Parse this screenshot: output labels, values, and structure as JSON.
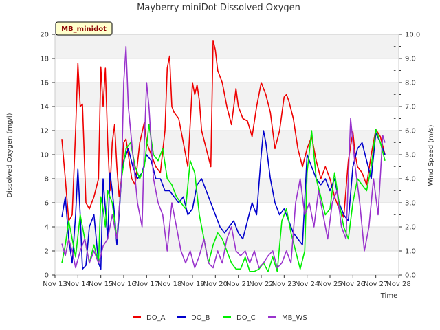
{
  "chart_data": {
    "type": "line",
    "title": "Mayberry miniDot Dissolved Oxygen",
    "xlabel": "Time",
    "ylabel": "Dissolved Oxygen (mg/l)",
    "y2label": "Wind Speed (m/s)",
    "badge": "MB_minidot",
    "x_ticks": [
      "Nov 13",
      "Nov 14",
      "Nov 15",
      "Nov 16",
      "Nov 17",
      "Nov 18",
      "Nov 19",
      "Nov 20",
      "Nov 21",
      "Nov 22",
      "Nov 23",
      "Nov 24",
      "Nov 25",
      "Nov 26",
      "Nov 27",
      "Nov 28"
    ],
    "y_ticks": [
      "0",
      "2",
      "4",
      "6",
      "8",
      "10",
      "12",
      "14",
      "16",
      "18",
      "20"
    ],
    "y2_ticks": [
      "0.0",
      "1.0",
      "2.0",
      "3.0",
      "4.0",
      "5.0",
      "6.0",
      "7.0",
      "8.0",
      "9.0",
      "10.0"
    ],
    "xlim": [
      13,
      28
    ],
    "ylim": [
      0,
      20
    ],
    "y2lim": [
      0,
      10
    ],
    "grid": true,
    "legend_position": "bottom",
    "series": [
      {
        "name": "DO_A",
        "color": "#ee0000",
        "axis": "left",
        "x": [
          13.3,
          13.45,
          13.6,
          13.75,
          13.9,
          14.0,
          14.1,
          14.2,
          14.35,
          14.5,
          14.7,
          14.9,
          15.0,
          15.1,
          15.2,
          15.3,
          15.4,
          15.5,
          15.6,
          15.7,
          15.8,
          15.9,
          16.0,
          16.1,
          16.2,
          16.35,
          16.5,
          16.7,
          16.9,
          17.0,
          17.2,
          17.4,
          17.6,
          17.8,
          17.9,
          18.0,
          18.1,
          18.2,
          18.4,
          18.6,
          18.8,
          19.0,
          19.1,
          19.2,
          19.3,
          19.4,
          19.6,
          19.8,
          19.9,
          20.0,
          20.1,
          20.3,
          20.5,
          20.7,
          20.9,
          21.0,
          21.2,
          21.4,
          21.6,
          21.8,
          22.0,
          22.2,
          22.4,
          22.6,
          22.8,
          23.0,
          23.1,
          23.2,
          23.4,
          23.6,
          23.8,
          24.0,
          24.2,
          24.4,
          24.6,
          24.8,
          25.0,
          25.2,
          25.4,
          25.6,
          25.8,
          26.0,
          26.1,
          26.2,
          26.4,
          26.6,
          26.8,
          27.0,
          27.2,
          27.4
        ],
        "values": [
          11.3,
          8.0,
          4.5,
          5.0,
          12.0,
          17.6,
          14.0,
          14.2,
          6.0,
          5.5,
          6.5,
          8.0,
          17.3,
          14.0,
          17.2,
          11.0,
          7.0,
          11.0,
          12.5,
          9.0,
          6.5,
          8.0,
          11.0,
          11.3,
          10.0,
          8.0,
          7.5,
          11.0,
          12.7,
          11.0,
          10.0,
          9.0,
          8.5,
          12.0,
          17.2,
          18.2,
          14.0,
          13.5,
          13.0,
          11.0,
          9.0,
          16.0,
          15.0,
          15.8,
          14.5,
          12.0,
          10.5,
          9.0,
          19.5,
          18.7,
          17.0,
          16.0,
          14.0,
          12.5,
          15.5,
          14.0,
          13.0,
          12.8,
          11.5,
          14.0,
          16.0,
          15.0,
          13.5,
          10.5,
          12.0,
          14.8,
          15.0,
          14.5,
          13.0,
          10.5,
          9.0,
          10.5,
          11.5,
          9.5,
          8.0,
          9.0,
          8.0,
          6.5,
          5.5,
          4.8,
          9.5,
          11.9,
          10.0,
          9.0,
          8.5,
          7.5,
          10.0,
          12.1,
          11.5,
          10.0
        ]
      },
      {
        "name": "DO_B",
        "color": "#0000cc",
        "axis": "left",
        "x": [
          13.3,
          13.45,
          13.6,
          13.75,
          13.9,
          14.0,
          14.1,
          14.2,
          14.35,
          14.5,
          14.7,
          14.9,
          15.0,
          15.1,
          15.2,
          15.3,
          15.4,
          15.5,
          15.6,
          15.7,
          15.8,
          15.9,
          16.0,
          16.2,
          16.4,
          16.6,
          16.8,
          17.0,
          17.2,
          17.4,
          17.6,
          17.8,
          18.0,
          18.2,
          18.4,
          18.6,
          18.8,
          19.0,
          19.2,
          19.4,
          19.6,
          19.8,
          20.0,
          20.2,
          20.4,
          20.6,
          20.8,
          21.0,
          21.2,
          21.4,
          21.6,
          21.8,
          22.0,
          22.1,
          22.2,
          22.4,
          22.6,
          22.8,
          23.0,
          23.2,
          23.4,
          23.6,
          23.8,
          24.0,
          24.2,
          24.4,
          24.6,
          24.8,
          25.0,
          25.2,
          25.4,
          25.6,
          25.8,
          26.0,
          26.2,
          26.4,
          26.6,
          26.8,
          27.0,
          27.2,
          27.4
        ],
        "values": [
          4.8,
          6.5,
          3.0,
          1.0,
          5.0,
          8.8,
          5.0,
          0.5,
          0.8,
          4.0,
          5.0,
          1.0,
          0.5,
          8.0,
          5.5,
          3.0,
          8.5,
          7.0,
          5.0,
          2.5,
          5.0,
          8.0,
          9.5,
          10.5,
          9.0,
          8.0,
          8.5,
          10.0,
          9.5,
          8.0,
          8.0,
          7.0,
          7.0,
          6.5,
          6.0,
          6.5,
          5.0,
          5.5,
          7.5,
          8.0,
          7.0,
          6.0,
          5.0,
          4.0,
          3.5,
          4.0,
          4.5,
          3.5,
          3.0,
          4.5,
          6.0,
          5.0,
          10.0,
          12.0,
          11.0,
          8.0,
          6.0,
          5.0,
          5.5,
          4.5,
          3.5,
          3.0,
          2.5,
          10.0,
          9.0,
          8.0,
          7.5,
          8.0,
          7.0,
          8.0,
          6.0,
          5.0,
          4.5,
          9.0,
          10.5,
          11.0,
          9.5,
          8.0,
          11.8,
          11.0,
          10.0
        ]
      },
      {
        "name": "DO_C",
        "color": "#00ee00",
        "axis": "left",
        "x": [
          13.3,
          13.45,
          13.6,
          13.75,
          13.9,
          14.1,
          14.3,
          14.5,
          14.7,
          14.9,
          15.0,
          15.1,
          15.2,
          15.3,
          15.5,
          15.7,
          15.9,
          16.1,
          16.3,
          16.5,
          16.7,
          16.9,
          17.1,
          17.3,
          17.5,
          17.7,
          17.9,
          18.1,
          18.3,
          18.5,
          18.7,
          18.9,
          19.1,
          19.3,
          19.5,
          19.7,
          19.9,
          20.1,
          20.3,
          20.5,
          20.7,
          20.9,
          21.1,
          21.3,
          21.5,
          21.7,
          21.9,
          22.1,
          22.3,
          22.5,
          22.7,
          22.9,
          23.1,
          23.3,
          23.5,
          23.7,
          23.9,
          24.0,
          24.2,
          24.4,
          24.6,
          24.8,
          25.0,
          25.2,
          25.4,
          25.6,
          25.8,
          26.0,
          26.2,
          26.4,
          26.6,
          26.8,
          27.0,
          27.2,
          27.4
        ],
        "values": [
          1.0,
          2.5,
          4.5,
          3.0,
          1.5,
          5.0,
          3.0,
          1.0,
          2.5,
          1.0,
          6.5,
          5.5,
          4.0,
          7.0,
          6.0,
          3.0,
          8.0,
          10.5,
          11.0,
          9.0,
          8.0,
          9.0,
          12.5,
          10.0,
          9.5,
          10.5,
          8.0,
          7.5,
          6.5,
          6.0,
          5.5,
          9.5,
          8.5,
          5.0,
          3.0,
          1.0,
          2.5,
          3.5,
          3.0,
          2.0,
          1.0,
          0.5,
          0.5,
          1.5,
          0.3,
          0.3,
          0.5,
          1.0,
          0.3,
          1.5,
          0.3,
          4.5,
          5.5,
          3.5,
          2.0,
          0.5,
          2.0,
          8.5,
          12.0,
          8.0,
          6.5,
          5.0,
          5.5,
          8.5,
          6.0,
          4.0,
          3.0,
          6.0,
          8.0,
          7.5,
          7.0,
          9.0,
          12.1,
          11.0,
          9.5
        ]
      },
      {
        "name": "MB_WS",
        "color": "#9933cc",
        "axis": "right",
        "x": [
          13.3,
          13.45,
          13.6,
          13.75,
          13.9,
          14.1,
          14.3,
          14.5,
          14.7,
          14.9,
          15.0,
          15.1,
          15.3,
          15.5,
          15.7,
          15.9,
          16.0,
          16.1,
          16.2,
          16.3,
          16.4,
          16.6,
          16.8,
          16.9,
          17.0,
          17.1,
          17.3,
          17.5,
          17.7,
          17.9,
          18.1,
          18.3,
          18.5,
          18.7,
          18.9,
          19.1,
          19.3,
          19.5,
          19.7,
          19.9,
          20.1,
          20.3,
          20.5,
          20.7,
          20.9,
          21.1,
          21.3,
          21.5,
          21.7,
          21.9,
          22.1,
          22.3,
          22.5,
          22.7,
          22.9,
          23.1,
          23.3,
          23.5,
          23.7,
          23.9,
          24.1,
          24.3,
          24.5,
          24.7,
          24.9,
          25.1,
          25.3,
          25.5,
          25.7,
          25.9,
          26.1,
          26.3,
          26.5,
          26.7,
          26.9,
          27.1,
          27.3,
          27.4
        ],
        "values": [
          1.3,
          0.8,
          1.5,
          1.0,
          0.3,
          1.0,
          1.5,
          0.5,
          1.0,
          0.5,
          0.8,
          1.2,
          1.5,
          2.5,
          1.5,
          4.0,
          8.0,
          9.5,
          7.0,
          6.0,
          5.0,
          3.0,
          2.0,
          5.5,
          8.0,
          7.0,
          4.0,
          3.0,
          2.5,
          1.0,
          3.0,
          2.0,
          1.0,
          0.5,
          1.0,
          0.3,
          0.8,
          1.5,
          0.5,
          0.3,
          1.0,
          0.5,
          1.5,
          2.0,
          1.0,
          0.8,
          1.0,
          0.5,
          1.0,
          0.3,
          0.5,
          0.8,
          1.0,
          0.3,
          0.5,
          1.0,
          0.5,
          3.0,
          4.0,
          2.5,
          3.0,
          2.0,
          3.5,
          2.5,
          1.5,
          3.0,
          3.5,
          2.0,
          1.5,
          6.5,
          4.5,
          3.0,
          1.0,
          2.0,
          4.0,
          2.5,
          5.8,
          5.5
        ]
      }
    ]
  }
}
